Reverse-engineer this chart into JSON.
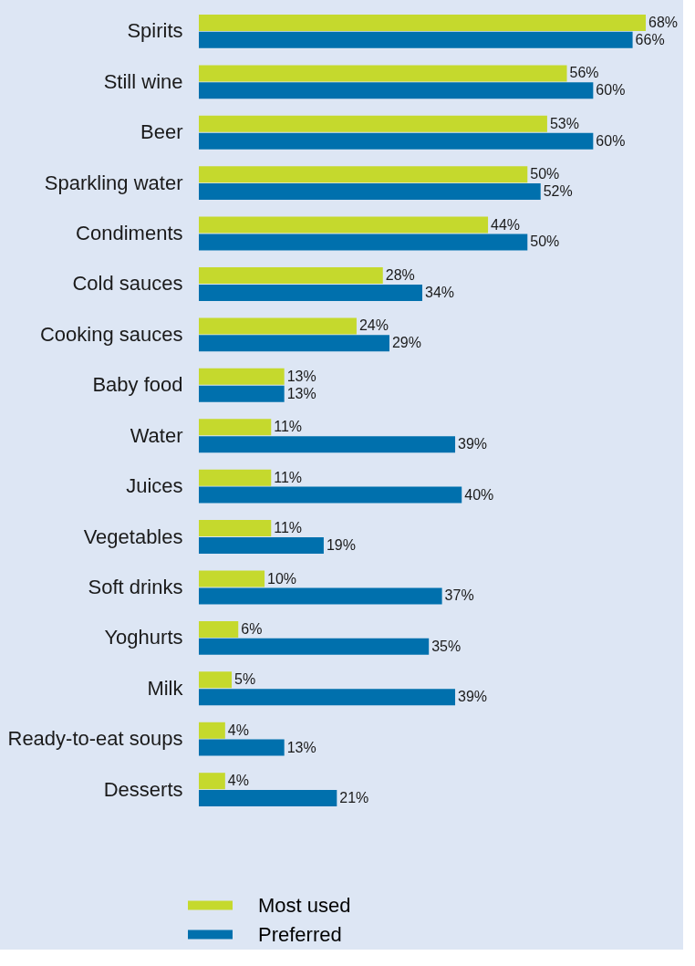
{
  "chart_data": {
    "type": "bar",
    "orientation": "horizontal",
    "legend": "bottom",
    "categories": [
      "Spirits",
      "Still wine",
      "Beer",
      "Sparkling water",
      "Condiments",
      "Cold sauces",
      "Cooking sauces",
      "Baby food",
      "Water",
      "Juices",
      "Vegetables",
      "Soft drinks",
      "Yoghurts",
      "Milk",
      "Ready-to-eat soups",
      "Desserts"
    ],
    "series": [
      {
        "name": "Most used",
        "color": "#c5d92d",
        "values": [
          68,
          56,
          53,
          50,
          44,
          28,
          24,
          13,
          11,
          11,
          11,
          10,
          6,
          5,
          4,
          4
        ],
        "value_labels": [
          "68%",
          "56%",
          "53%",
          "50%",
          "44%",
          "28%",
          "24%",
          "13%",
          "11%",
          "11%",
          "11%",
          "10%",
          "6%",
          "5%",
          "4%",
          "4%"
        ]
      },
      {
        "name": "Preferred",
        "color": "#0070ad",
        "values": [
          66,
          60,
          60,
          52,
          50,
          34,
          29,
          13,
          39,
          40,
          19,
          37,
          35,
          39,
          13,
          21
        ],
        "value_labels": [
          "66%",
          "60%",
          "60%",
          "52%",
          "50%",
          "34%",
          "29%",
          "13%",
          "39%",
          "40%",
          "19%",
          "37%",
          "35%",
          "39%",
          "13%",
          "21%"
        ]
      }
    ]
  }
}
